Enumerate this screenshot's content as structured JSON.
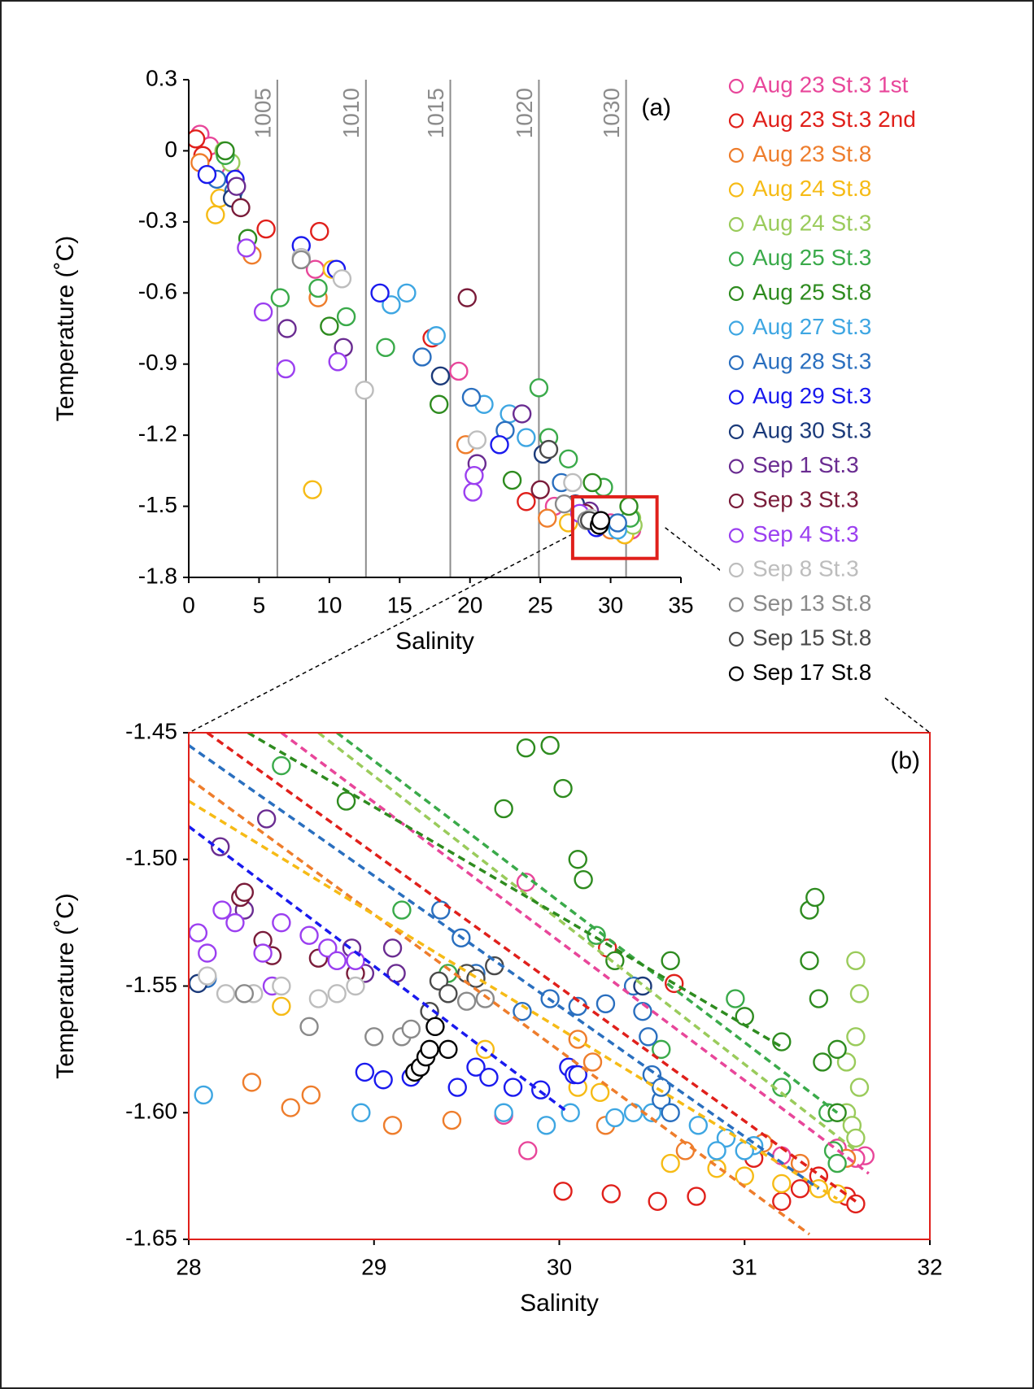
{
  "chart_data": [
    {
      "type": "scatter",
      "panel_label": "(a)",
      "xlabel": "Salinity",
      "ylabel": "Temperature (˚C)",
      "xlim": [
        0,
        35
      ],
      "xticks": [
        0,
        5,
        10,
        15,
        20,
        25,
        30,
        35
      ],
      "ylim": [
        -1.8,
        0.3
      ],
      "yticks": [
        -1.8,
        -1.5,
        -1.2,
        -0.9,
        -0.6,
        -0.3,
        0,
        0.3
      ],
      "legend": "right",
      "isopycnals": [
        {
          "label": "1005",
          "x": 6.3
        },
        {
          "label": "1010",
          "x": 12.6
        },
        {
          "label": "1015",
          "x": 18.6
        },
        {
          "label": "1020",
          "x": 24.9
        },
        {
          "label": "1030",
          "x": 31.1
        }
      ],
      "zoom_box": {
        "xlim": [
          27.3,
          33.3
        ],
        "ylim": [
          -1.72,
          -1.46
        ]
      },
      "series": [
        {
          "name": "Aug 23 St.3 1st",
          "color": "#e8469a",
          "x": [
            0.8,
            1.5,
            3,
            9,
            19.2,
            26,
            30,
            31.5
          ],
          "values": [
            0.07,
            0.02,
            -0.1,
            -0.5,
            -0.93,
            -1.5,
            -1.57,
            -1.6
          ]
        },
        {
          "name": "Aug 23 St.3 2nd",
          "color": "#e0201b",
          "x": [
            0.5,
            1,
            5.5,
            9.3,
            17.3,
            24,
            31
          ],
          "values": [
            0.05,
            -0.02,
            -0.33,
            -0.34,
            -0.79,
            -1.48,
            -1.62
          ]
        },
        {
          "name": "Aug 23 St.8",
          "color": "#ee7d2c",
          "x": [
            0.8,
            4.5,
            9.2,
            19.7,
            25.5,
            30
          ],
          "values": [
            -0.05,
            -0.44,
            -0.62,
            -1.24,
            -1.55,
            -1.6
          ]
        },
        {
          "name": "Aug 24 St.8",
          "color": "#f6bb16",
          "x": [
            1.9,
            2.2,
            8.8,
            10.2,
            27,
            31
          ],
          "values": [
            -0.27,
            -0.2,
            -1.43,
            -0.5,
            -1.57,
            -1.62
          ]
        },
        {
          "name": "Aug 24 St.3",
          "color": "#9acb5b",
          "x": [
            2.5,
            3,
            31.5,
            31.6
          ],
          "values": [
            0,
            -0.05,
            -1.55,
            -1.58
          ]
        },
        {
          "name": "Aug 25 St.3",
          "color": "#3aaa4a",
          "x": [
            2.6,
            6.5,
            9.2,
            11.2,
            14,
            24.9,
            25.6,
            27,
            29.5,
            31.4
          ],
          "values": [
            -0.02,
            -0.62,
            -0.58,
            -0.7,
            -0.83,
            -1.0,
            -1.21,
            -1.3,
            -1.42,
            -1.55
          ]
        },
        {
          "name": "Aug 25 St.8",
          "color": "#2e8b1f",
          "x": [
            2.6,
            4.2,
            10,
            17.8,
            23,
            28.7,
            31.3
          ],
          "values": [
            0,
            -0.37,
            -0.74,
            -1.07,
            -1.39,
            -1.4,
            -1.5
          ]
        },
        {
          "name": "Aug 27 St.3",
          "color": "#3ea6e2",
          "x": [
            14.4,
            15.5,
            17.6,
            21,
            22.8,
            24,
            30.5
          ],
          "values": [
            -0.65,
            -0.6,
            -0.78,
            -1.07,
            -1.11,
            -1.21,
            -1.6
          ]
        },
        {
          "name": "Aug 28 St.3",
          "color": "#2a6fbf",
          "x": [
            2,
            3.2,
            16.6,
            20.1,
            22.5,
            26.5,
            30.5
          ],
          "values": [
            -0.12,
            -0.17,
            -0.87,
            -1.04,
            -1.18,
            -1.4,
            -1.57
          ]
        },
        {
          "name": "Aug 29 St.3",
          "color": "#1a1aee",
          "x": [
            1.3,
            3.3,
            8,
            10.5,
            13.6,
            22.1,
            29
          ],
          "values": [
            -0.1,
            -0.12,
            -0.4,
            -0.5,
            -0.6,
            -1.24,
            -1.59
          ]
        },
        {
          "name": "Aug 30 St.3",
          "color": "#1b3a7a",
          "x": [
            3.1,
            17.9,
            25.2,
            27.5
          ],
          "values": [
            -0.2,
            -0.95,
            -1.28,
            -1.49
          ]
        },
        {
          "name": "Sep 1 St.3",
          "color": "#6a2c91",
          "x": [
            3.4,
            7,
            11,
            20.5,
            23.7,
            28.5
          ],
          "values": [
            -0.15,
            -0.75,
            -0.83,
            -1.32,
            -1.11,
            -1.52
          ]
        },
        {
          "name": "Sep 3 St.3",
          "color": "#7a1c3a",
          "x": [
            3.7,
            19.8,
            25,
            28.2
          ],
          "values": [
            -0.24,
            -0.62,
            -1.43,
            -1.53
          ]
        },
        {
          "name": "Sep 4 St.3",
          "color": "#9b3ff0",
          "x": [
            4.1,
            5.3,
            6.9,
            10.6,
            20.2,
            20.3,
            27.8
          ],
          "values": [
            -0.41,
            -0.68,
            -0.92,
            -0.89,
            -1.44,
            -1.37,
            -1.53
          ]
        },
        {
          "name": "Sep 8 St.3",
          "color": "#bdbdbd",
          "x": [
            8,
            10.9,
            12.5,
            20.5,
            27.3,
            28.6
          ],
          "values": [
            -0.45,
            -0.54,
            -1.01,
            -1.22,
            -1.4,
            -1.55
          ]
        },
        {
          "name": "Sep 13 St.8",
          "color": "#8a8a8a",
          "x": [
            8,
            26.7,
            28.3
          ],
          "values": [
            -0.46,
            -1.49,
            -1.56
          ]
        },
        {
          "name": "Sep 15 St.8",
          "color": "#4a4a4a",
          "x": [
            25.6,
            28.5
          ],
          "values": [
            -1.26,
            -1.56
          ]
        },
        {
          "name": "Sep 17 St.8",
          "color": "#000000",
          "x": [
            29.2,
            29.3
          ],
          "values": [
            -1.58,
            -1.56
          ]
        }
      ]
    },
    {
      "type": "scatter",
      "panel_label": "(b)",
      "xlabel": "Salinity",
      "ylabel": "Temperature (˚C)",
      "xlim": [
        28,
        32
      ],
      "xticks": [
        28,
        29,
        30,
        31,
        32
      ],
      "ylim": [
        -1.65,
        -1.45
      ],
      "yticks": [
        -1.65,
        {
          "value": -1.6,
          "label": "-1.60"
        },
        -1.55,
        {
          "value": -1.5,
          "label": "-1.50"
        },
        -1.45
      ],
      "series": [
        {
          "color": "#e8469a",
          "x": [
            29.82,
            29.7,
            29.83,
            31.2,
            31.5,
            31.65,
            31.6
          ],
          "values": [
            -1.509,
            -1.601,
            -1.615,
            -1.617,
            -1.614,
            -1.617,
            -1.618
          ],
          "fit": {
            "x": [
              28.5,
              31.67
            ],
            "y": [
              -1.45,
              -1.624
            ]
          }
        },
        {
          "color": "#e0201b",
          "x": [
            30.02,
            30.28,
            30.53,
            30.74,
            31.05,
            31.2,
            31.3,
            31.4,
            31.55,
            31.6,
            30.26,
            30.62
          ],
          "values": [
            -1.631,
            -1.632,
            -1.635,
            -1.633,
            -1.618,
            -1.635,
            -1.63,
            -1.625,
            -1.633,
            -1.636,
            -1.535,
            -1.549
          ],
          "fit": {
            "x": [
              28.1,
              31.6
            ],
            "y": [
              -1.45,
              -1.635
            ]
          }
        },
        {
          "color": "#ee7d2c",
          "x": [
            28.34,
            28.55,
            28.66,
            29.1,
            29.42,
            30.1,
            30.18,
            30.25,
            30.68,
            31.1,
            31.3,
            31.55
          ],
          "values": [
            -1.588,
            -1.598,
            -1.593,
            -1.605,
            -1.603,
            -1.571,
            -1.58,
            -1.605,
            -1.615,
            -1.612,
            -1.62,
            -1.618
          ],
          "fit": {
            "x": [
              28,
              31.35
            ],
            "y": [
              -1.468,
              -1.648
            ]
          }
        },
        {
          "color": "#f6bb16",
          "x": [
            28.5,
            29.6,
            30.1,
            30.22,
            30.6,
            30.85,
            31.0,
            31.2,
            31.4,
            31.5
          ],
          "values": [
            -1.558,
            -1.575,
            -1.59,
            -1.592,
            -1.62,
            -1.622,
            -1.625,
            -1.628,
            -1.63,
            -1.632
          ],
          "fit": {
            "x": [
              28,
              31.5
            ],
            "y": [
              -1.477,
              -1.634
            ]
          }
        },
        {
          "color": "#9acb5b",
          "x": [
            31.55,
            31.6,
            31.62,
            31.6,
            31.62,
            31.55,
            31.58,
            31.6
          ],
          "values": [
            -1.58,
            -1.54,
            -1.553,
            -1.57,
            -1.59,
            -1.6,
            -1.605,
            -1.61
          ],
          "fit": {
            "x": [
              28.7,
              31.6
            ],
            "y": [
              -1.45,
              -1.615
            ]
          }
        },
        {
          "color": "#3aaa4a",
          "x": [
            28.5,
            29.15,
            29.4,
            30.2,
            30.55,
            30.95,
            31.2,
            31.45,
            31.48,
            31.5
          ],
          "values": [
            -1.463,
            -1.52,
            -1.545,
            -1.53,
            -1.575,
            -1.555,
            -1.59,
            -1.6,
            -1.615,
            -1.62
          ],
          "fit": {
            "x": [
              28.8,
              31.5
            ],
            "y": [
              -1.45,
              -1.6
            ]
          }
        },
        {
          "color": "#2e8b1f",
          "x": [
            28.85,
            29.82,
            29.95,
            30.02,
            29.7,
            30.1,
            30.13,
            30.3,
            30.6,
            31.0,
            31.2,
            31.35,
            31.35,
            31.38,
            31.4,
            31.42,
            31.5,
            31.5
          ],
          "values": [
            -1.477,
            -1.456,
            -1.455,
            -1.472,
            -1.48,
            -1.5,
            -1.508,
            -1.54,
            -1.54,
            -1.562,
            -1.572,
            -1.52,
            -1.54,
            -1.515,
            -1.555,
            -1.58,
            -1.575,
            -1.6
          ],
          "fit": {
            "x": [
              28.32,
              31.2
            ],
            "y": [
              -1.45,
              -1.574
            ]
          }
        },
        {
          "color": "#3ea6e2",
          "x": [
            28.08,
            28.93,
            29.7,
            29.93,
            30.06,
            30.3,
            30.5,
            30.75,
            30.9,
            31.05,
            30.85,
            30.4,
            31
          ],
          "values": [
            -1.593,
            -1.6,
            -1.6,
            -1.605,
            -1.6,
            -1.602,
            -1.6,
            -1.605,
            -1.61,
            -1.613,
            -1.615,
            -1.6,
            -1.615
          ]
        },
        {
          "color": "#2a6fbf",
          "x": [
            28.1,
            29.36,
            29.47,
            29.55,
            29.8,
            29.95,
            30.1,
            30.25,
            30.4,
            30.45,
            30.48,
            30.5,
            30.55,
            30.6,
            30.55
          ],
          "values": [
            -1.547,
            -1.52,
            -1.531,
            -1.545,
            -1.56,
            -1.555,
            -1.558,
            -1.557,
            -1.55,
            -1.56,
            -1.57,
            -1.585,
            -1.595,
            -1.6,
            -1.59
          ],
          "fit": {
            "x": [
              28,
              31.4
            ],
            "y": [
              -1.455,
              -1.63
            ]
          }
        },
        {
          "color": "#1a1aee",
          "x": [
            28.95,
            29.05,
            29.2,
            29.45,
            29.55,
            29.62,
            29.75,
            29.9,
            30.05,
            30.08,
            30.1
          ],
          "values": [
            -1.584,
            -1.587,
            -1.586,
            -1.59,
            -1.582,
            -1.586,
            -1.59,
            -1.591,
            -1.582,
            -1.585,
            -1.585
          ],
          "fit": {
            "x": [
              28,
              30.05
            ],
            "y": [
              -1.487,
              -1.6
            ]
          }
        },
        {
          "color": "#1b3a7a",
          "x": [
            28.05,
            30.45
          ],
          "values": [
            -1.549,
            -1.55
          ]
        },
        {
          "color": "#6a2c91",
          "x": [
            28.17,
            28.42,
            28.88,
            29.1,
            29.12,
            28.3,
            28.95
          ],
          "values": [
            -1.495,
            -1.484,
            -1.535,
            -1.535,
            -1.545,
            -1.52,
            -1.545
          ]
        },
        {
          "color": "#7a1c3a",
          "x": [
            28.28,
            28.3,
            28.45,
            28.4,
            28.7,
            28.9
          ],
          "values": [
            -1.515,
            -1.513,
            -1.538,
            -1.532,
            -1.539,
            -1.545
          ]
        },
        {
          "color": "#9b3ff0",
          "x": [
            28.05,
            28.1,
            28.18,
            28.25,
            28.4,
            28.45,
            28.5,
            28.65,
            28.75,
            28.8,
            28.9
          ],
          "values": [
            -1.529,
            -1.537,
            -1.52,
            -1.525,
            -1.537,
            -1.55,
            -1.525,
            -1.53,
            -1.535,
            -1.54,
            -1.54
          ]
        },
        {
          "color": "#bdbdbd",
          "x": [
            28.1,
            28.2,
            28.35,
            28.5,
            28.7,
            28.8,
            28.9
          ],
          "values": [
            -1.546,
            -1.553,
            -1.553,
            -1.55,
            -1.555,
            -1.553,
            -1.55
          ]
        },
        {
          "color": "#8a8a8a",
          "x": [
            28.3,
            28.65,
            29.0,
            29.15,
            29.2,
            29.5,
            29.6
          ],
          "values": [
            -1.553,
            -1.566,
            -1.57,
            -1.57,
            -1.567,
            -1.556,
            -1.555
          ]
        },
        {
          "color": "#4a4a4a",
          "x": [
            29.3,
            29.35,
            29.4,
            29.5,
            29.55,
            29.65
          ],
          "values": [
            -1.56,
            -1.548,
            -1.553,
            -1.545,
            -1.547,
            -1.542
          ]
        },
        {
          "color": "#000000",
          "x": [
            29.22,
            29.25,
            29.28,
            29.3,
            29.33,
            29.4
          ],
          "values": [
            -1.584,
            -1.582,
            -1.578,
            -1.575,
            -1.566,
            -1.575
          ]
        }
      ]
    }
  ]
}
